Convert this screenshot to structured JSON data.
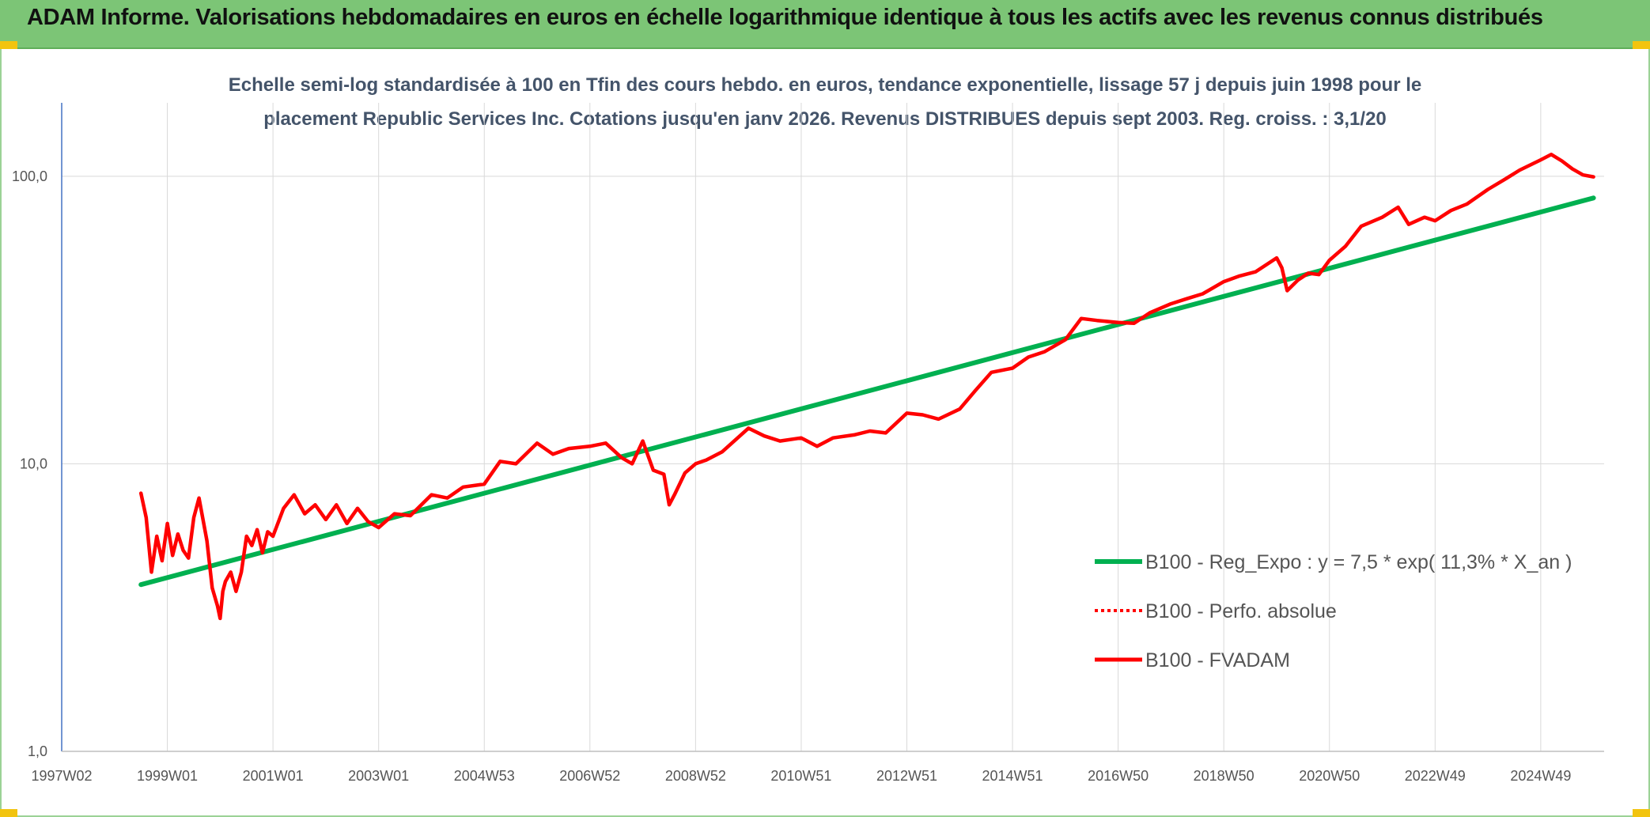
{
  "banner": {
    "title": "ADAM Informe. Valorisations hebdomadaires en euros en échelle logarithmique identique à tous les actifs avec les revenus connus distribués"
  },
  "colors": {
    "banner": "#7cc576",
    "trend": "#00b050",
    "series": "#ff0000",
    "grid": "#d9d9d9",
    "axis": "#4472c4"
  },
  "chart_data": {
    "type": "line",
    "title_lines": [
      "Echelle semi-log standardisée à 100 en Tfin des cours hebdo. en euros, tendance exponentielle, lissage 57 j depuis juin 1998 pour le",
      "placement Republic Services Inc. Cotations jusqu'en janv 2026. Revenus DISTRIBUES depuis sept 2003. Reg. croiss. : 3,1/20"
    ],
    "y_scale": "log",
    "ylim": [
      1,
      180
    ],
    "y_ticks": [
      1,
      10,
      100
    ],
    "y_tick_labels": [
      "1,0",
      "10,0",
      "100,0"
    ],
    "xlim": [
      1997.0,
      2026.2
    ],
    "x_ticks": [
      1997.0,
      1999.0,
      2001.0,
      2003.0,
      2005.0,
      2007.0,
      2009.0,
      2011.0,
      2013.0,
      2015.0,
      2017.0,
      2019.0,
      2021.0,
      2023.0,
      2025.0
    ],
    "x_tick_labels": [
      "1997W02",
      "1999W01",
      "2001W01",
      "2003W01",
      "2004W53",
      "2006W52",
      "2008W52",
      "2010W51",
      "2012W51",
      "2014W51",
      "2016W50",
      "2018W50",
      "2020W50",
      "2022W49",
      "2024W49"
    ],
    "legend_position": "right",
    "series": [
      {
        "name": "B100 - Reg_Expo : y = 7,5 * exp( 11,3% *  X_an )",
        "style": "solid-thick",
        "color": "#00b050",
        "x": [
          1998.5,
          2026.0
        ],
        "y": [
          3.8,
          84
        ]
      },
      {
        "name": "B100 - Perfo. absolue",
        "style": "dotted",
        "color": "#ff0000",
        "x": [],
        "y": []
      },
      {
        "name": "B100 - FVADAM",
        "style": "solid",
        "color": "#ff0000",
        "x": [
          1998.5,
          1998.6,
          1998.7,
          1998.8,
          1998.9,
          1999.0,
          1999.1,
          1999.2,
          1999.3,
          1999.4,
          1999.5,
          1999.6,
          1999.75,
          1999.85,
          1999.95,
          2000.0,
          2000.05,
          2000.1,
          2000.2,
          2000.3,
          2000.4,
          2000.5,
          2000.6,
          2000.7,
          2000.8,
          2000.9,
          2001.0,
          2001.2,
          2001.4,
          2001.6,
          2001.8,
          2002.0,
          2002.2,
          2002.4,
          2002.6,
          2002.8,
          2003.0,
          2003.3,
          2003.6,
          2004.0,
          2004.3,
          2004.6,
          2005.0,
          2005.3,
          2005.6,
          2006.0,
          2006.3,
          2006.6,
          2007.0,
          2007.3,
          2007.6,
          2007.8,
          2008.0,
          2008.2,
          2008.4,
          2008.5,
          2008.6,
          2008.8,
          2009.0,
          2009.2,
          2009.5,
          2010.0,
          2010.3,
          2010.6,
          2011.0,
          2011.3,
          2011.6,
          2012.0,
          2012.3,
          2012.6,
          2013.0,
          2013.3,
          2013.6,
          2014.0,
          2014.3,
          2014.6,
          2015.0,
          2015.3,
          2015.6,
          2016.0,
          2016.3,
          2016.6,
          2017.0,
          2017.3,
          2017.6,
          2018.0,
          2018.3,
          2018.6,
          2019.0,
          2019.3,
          2019.6,
          2020.0,
          2020.1,
          2020.2,
          2020.4,
          2020.6,
          2020.8,
          2021.0,
          2021.3,
          2021.6,
          2022.0,
          2022.3,
          2022.5,
          2022.8,
          2023.0,
          2023.3,
          2023.6,
          2024.0,
          2024.3,
          2024.6,
          2025.0,
          2025.2,
          2025.4,
          2025.6,
          2025.8,
          2026.0
        ],
        "y": [
          7.9,
          6.5,
          4.2,
          5.6,
          4.6,
          6.2,
          4.8,
          5.7,
          5.0,
          4.7,
          6.5,
          7.6,
          5.4,
          3.7,
          3.2,
          2.9,
          3.6,
          3.9,
          4.2,
          3.6,
          4.2,
          5.6,
          5.2,
          5.9,
          4.9,
          5.8,
          5.6,
          7.0,
          7.8,
          6.7,
          7.2,
          6.4,
          7.2,
          6.2,
          7.0,
          6.3,
          6.0,
          6.7,
          6.6,
          7.8,
          7.6,
          8.3,
          8.5,
          10.2,
          10.0,
          11.8,
          10.8,
          11.3,
          11.5,
          11.8,
          10.5,
          10.0,
          12.0,
          9.5,
          9.2,
          7.2,
          7.8,
          9.3,
          10.0,
          10.3,
          11.0,
          13.3,
          12.5,
          12.0,
          12.3,
          11.5,
          12.3,
          12.6,
          13.0,
          12.8,
          15.0,
          14.8,
          14.3,
          15.5,
          18.0,
          20.8,
          21.5,
          23.5,
          24.5,
          27.0,
          32.0,
          31.5,
          31.0,
          30.8,
          33.5,
          36.0,
          37.5,
          39.0,
          43.0,
          45.0,
          46.5,
          52.0,
          48.0,
          40.0,
          43.5,
          46.0,
          45.5,
          51.0,
          57.0,
          67.0,
          72.0,
          78.0,
          68.0,
          72.0,
          70.0,
          76.0,
          80.0,
          90.0,
          97.0,
          105.0,
          114.0,
          119.0,
          113.0,
          106.0,
          101.0,
          99.5
        ]
      }
    ]
  }
}
